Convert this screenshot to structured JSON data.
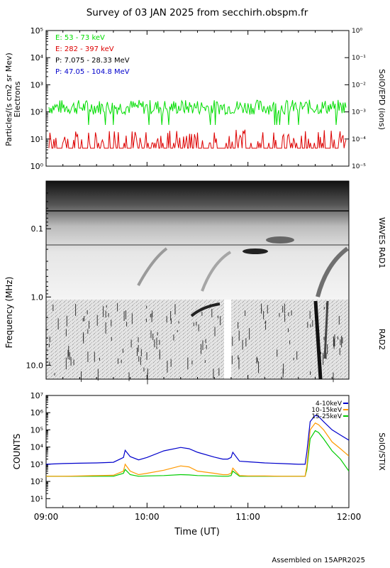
{
  "title": "Survey of 03 JAN 2025 from secchirh.obspm.fr",
  "footer": "Assembled on 15APR2025",
  "colors": {
    "electrons_low": "#00dd00",
    "electrons_high": "#dd0000",
    "protons_low": "#000000",
    "protons_high": "#0000cc",
    "stix_low": "#0000cc",
    "stix_mid": "#ff9900",
    "stix_high": "#00cc00"
  },
  "chart_data": [
    {
      "type": "line",
      "panel": "SolO/EPD",
      "ylabel": "Particles/(s cm2 sr Mev)",
      "ylabel2": "Electrons",
      "right_label": "SolO/EPD (ions)",
      "yscale": "log",
      "ylim": [
        1,
        100000
      ],
      "yticks": [
        "10⁰",
        "10¹",
        "10²",
        "10³",
        "10⁴",
        "10⁵"
      ],
      "y2lim": [
        1e-05,
        1
      ],
      "y2ticks": [
        "10⁻⁵",
        "10⁻⁴",
        "10⁻³",
        "10⁻²",
        "10⁻¹",
        "10⁰"
      ],
      "xlim": [
        "09:00",
        "12:00"
      ],
      "legend_position": "top-left",
      "series": [
        {
          "name": "E: 53 - 73 keV",
          "color": "#00dd00",
          "typical": 150
        },
        {
          "name": "E: 282 - 397 keV",
          "color": "#dd0000",
          "typical": 8
        },
        {
          "name": "P: 7.075 - 28.33 MeV",
          "color": "#000000"
        },
        {
          "name": "P: 47.05 - 104.8 MeV",
          "color": "#0000cc"
        }
      ]
    },
    {
      "type": "heatmap",
      "panel": "Radio dynamic spectrum",
      "ylabel": "Frequency (MHz)",
      "yscale": "log",
      "yticks": [
        "0.1",
        "1.0",
        "10.0"
      ],
      "ylim": [
        0.02,
        16
      ],
      "y_inverted": true,
      "xlim": [
        "09:00",
        "12:00"
      ],
      "right_labels": [
        "WAVES RAD1",
        "RAD2"
      ]
    },
    {
      "type": "line",
      "panel": "SolO/STIX",
      "ylabel": "COUNTS",
      "right_label": "SolO/STIX",
      "xlabel": "Time (UT)",
      "yscale": "log",
      "ylim": [
        3,
        10000000
      ],
      "yticks": [
        "10¹",
        "10²",
        "10³",
        "10⁴",
        "10⁵",
        "10⁶",
        "10⁷"
      ],
      "xticks": [
        "09:00",
        "10:00",
        "11:00",
        "12:00"
      ],
      "legend_position": "top-right",
      "series": [
        {
          "name": "4-10keV",
          "color": "#0000cc",
          "x": [
            0,
            10,
            20,
            30,
            40,
            46,
            47,
            50,
            55,
            60,
            70,
            80,
            85,
            90,
            100,
            105,
            108,
            110,
            111,
            115,
            120,
            130,
            140,
            150,
            154,
            155,
            157,
            160,
            162,
            165,
            170,
            175,
            180
          ],
          "y": [
            1000,
            1100,
            1150,
            1200,
            1300,
            2500,
            6500,
            2800,
            1800,
            2500,
            6000,
            9500,
            8000,
            5000,
            2600,
            2000,
            2000,
            2500,
            5000,
            1500,
            1400,
            1200,
            1100,
            1000,
            1000,
            5000,
            300000,
            700000,
            600000,
            300000,
            100000,
            50000,
            25000
          ]
        },
        {
          "name": "10-15keV",
          "color": "#ff9900",
          "x": [
            0,
            10,
            20,
            30,
            40,
            46,
            47,
            50,
            55,
            60,
            70,
            80,
            85,
            90,
            100,
            105,
            108,
            110,
            111,
            115,
            120,
            130,
            140,
            150,
            154,
            155,
            157,
            160,
            162,
            165,
            170,
            175,
            180
          ],
          "y": [
            200,
            200,
            210,
            220,
            230,
            400,
            1000,
            400,
            250,
            300,
            450,
            800,
            700,
            400,
            300,
            250,
            250,
            300,
            600,
            220,
            210,
            210,
            200,
            200,
            200,
            800,
            100000,
            250000,
            200000,
            100000,
            20000,
            8000,
            3000
          ]
        },
        {
          "name": "15-25keV",
          "color": "#00cc00",
          "x": [
            0,
            10,
            20,
            30,
            40,
            46,
            47,
            50,
            55,
            60,
            70,
            80,
            85,
            90,
            100,
            105,
            108,
            110,
            111,
            115,
            120,
            130,
            140,
            150,
            154,
            155,
            157,
            160,
            162,
            165,
            170,
            175,
            180
          ],
          "y": [
            200,
            200,
            200,
            200,
            200,
            300,
            500,
            250,
            200,
            210,
            220,
            250,
            240,
            220,
            210,
            200,
            200,
            220,
            400,
            200,
            200,
            200,
            200,
            200,
            200,
            500,
            30000,
            90000,
            70000,
            30000,
            6000,
            2000,
            400
          ]
        }
      ]
    }
  ]
}
